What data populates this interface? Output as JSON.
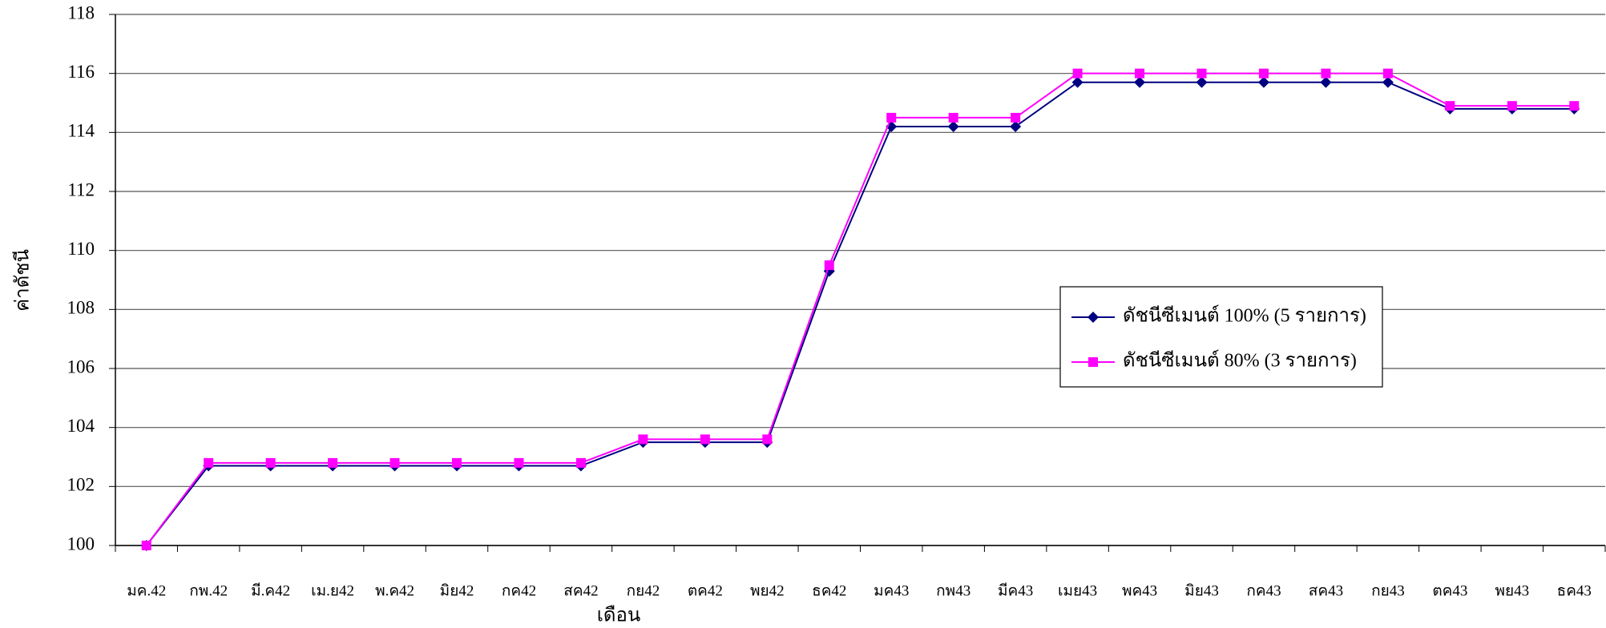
{
  "chart_data": {
    "type": "line",
    "categories": [
      "มค.42",
      "กพ.42",
      "มี.ค42",
      "เม.ย42",
      "พ.ค42",
      "มิย42",
      "กค42",
      "สค42",
      "กย42",
      "ตค42",
      "พย42",
      "ธค42",
      "มค43",
      "กพ43",
      "มีค43",
      "เมย43",
      "พค43",
      "มิย43",
      "กค43",
      "สค43",
      "กย43",
      "ตค43",
      "พย43",
      "ธค43"
    ],
    "series": [
      {
        "name": "ดัชนีซีเมนต์ 100% (5 รายการ)",
        "color": "#000080",
        "marker": "diamond",
        "values": [
          100,
          102.7,
          102.7,
          102.7,
          102.7,
          102.7,
          102.7,
          102.7,
          103.5,
          103.5,
          103.5,
          109.3,
          114.2,
          114.2,
          114.2,
          115.7,
          115.7,
          115.7,
          115.7,
          115.7,
          115.7,
          114.8,
          114.8,
          114.8
        ]
      },
      {
        "name": "ดัชนีซีเมนต์ 80% (3 รายการ)",
        "color": "#ff00ff",
        "marker": "square",
        "values": [
          100,
          102.8,
          102.8,
          102.8,
          102.8,
          102.8,
          102.8,
          102.8,
          103.6,
          103.6,
          103.6,
          109.5,
          114.5,
          114.5,
          114.5,
          116.0,
          116.0,
          116.0,
          116.0,
          116.0,
          116.0,
          114.9,
          114.9,
          114.9
        ]
      }
    ],
    "x_label": "เดือน",
    "y_label": "ค่าดัชนี",
    "ylim": [
      100,
      118
    ],
    "yticks": [
      100,
      102,
      104,
      106,
      108,
      110,
      112,
      114,
      116,
      118
    ],
    "grid": true
  }
}
